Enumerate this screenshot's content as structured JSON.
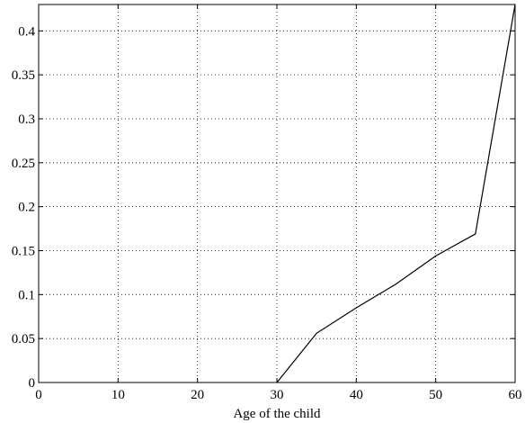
{
  "chart_data": {
    "type": "line",
    "title": "",
    "xlabel": "Age of the child",
    "ylabel": "",
    "xlim": [
      0,
      60
    ],
    "ylim": [
      0,
      0.43
    ],
    "grid": true,
    "xticks": [
      0,
      10,
      20,
      30,
      40,
      50,
      60
    ],
    "xtick_labels": [
      "0",
      "10",
      "20",
      "30",
      "40",
      "50",
      "60"
    ],
    "yticks": [
      0,
      0.05,
      0.1,
      0.15,
      0.2,
      0.25,
      0.3,
      0.35,
      0.4
    ],
    "ytick_labels": [
      "0",
      "0.05",
      "0.1",
      "0.15",
      "0.2",
      "0.25",
      "0.3",
      "0.35",
      "0.4"
    ],
    "series": [
      {
        "x": [
          30,
          35,
          40,
          45,
          50,
          55,
          60
        ],
        "y": [
          0,
          0.056,
          0.085,
          0.112,
          0.144,
          0.169,
          0.43
        ]
      }
    ],
    "line_color": "#000000"
  }
}
